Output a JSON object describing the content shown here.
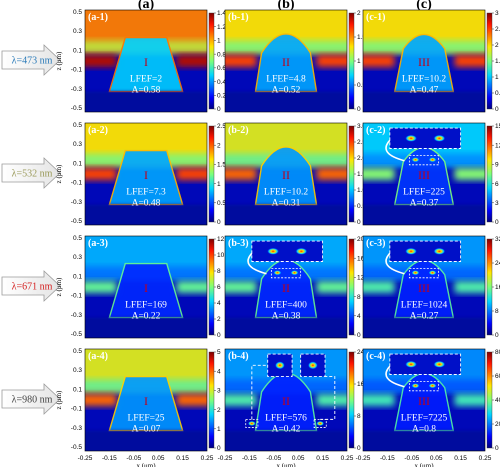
{
  "columns": [
    "(a)",
    "(b)",
    "(c)"
  ],
  "wavelengths": [
    {
      "label": "λ=473 nm",
      "color": "#2b7bb9"
    },
    {
      "label": "λ=532 nm",
      "color": "#9a9a5a"
    },
    {
      "label": "λ=671 nm",
      "color": "#d42020"
    },
    {
      "label": "λ=980 nm",
      "color": "#444444"
    }
  ],
  "axes": {
    "x_label": "x (μm)",
    "z_label": "z (μm)",
    "x_ticks": [
      "-0.25",
      "-0.15",
      "-0.05",
      "0.05",
      "0.15",
      "0.25"
    ],
    "z_ticks": [
      "0.5",
      "0.3",
      "0.1",
      "-0.1",
      "-0.3",
      "-0.5"
    ]
  },
  "panels": [
    {
      "id": "(a-1)",
      "region": "I",
      "lfef": "LFEF=2",
      "abs": "A=0.58",
      "cbar": [
        "1.4",
        "1.2",
        "1",
        "0.8",
        "0.6",
        "0.4",
        "0.2",
        "0"
      ],
      "type": "a",
      "level": 0.75,
      "zoom": 0
    },
    {
      "id": "(b-1)",
      "region": "II",
      "lfef": "LFEF=4.8",
      "abs": "A=0.52",
      "cbar": [
        "2",
        "1.5",
        "1",
        "0.5",
        "0"
      ],
      "type": "b",
      "level": 0.6,
      "zoom": 0
    },
    {
      "id": "(c-1)",
      "region": "III",
      "lfef": "LFEF=10.2",
      "abs": "A=0.47",
      "cbar": [
        "3",
        "2.5",
        "2",
        "1.5",
        "1",
        "0.5",
        "0"
      ],
      "type": "c",
      "level": 0.6,
      "zoom": 0
    },
    {
      "id": "(a-2)",
      "region": "I",
      "lfef": "LFEF=7.3",
      "abs": "A=0.48",
      "cbar": [
        "2.5",
        "2",
        "1.5",
        "1",
        "0.5",
        "0"
      ],
      "type": "a",
      "level": 0.6,
      "zoom": 0
    },
    {
      "id": "(b-2)",
      "region": "II",
      "lfef": "LFEF=10.2",
      "abs": "A=0.31",
      "cbar": [
        "3.0",
        "2.5",
        "2.0",
        "1.5",
        "1.0",
        "0.5",
        "0"
      ],
      "type": "b",
      "level": 0.55,
      "zoom": 0
    },
    {
      "id": "(c-2)",
      "region": "III",
      "lfef": "LFEF=225",
      "abs": "A=0.37",
      "cbar": [
        "15",
        "12",
        "9",
        "6",
        "3",
        "0"
      ],
      "type": "c",
      "level": 0.2,
      "zoom": 1
    },
    {
      "id": "(a-3)",
      "region": "I",
      "lfef": "LFEF=169",
      "abs": "A=0.22",
      "cbar": [
        "12",
        "10",
        "8",
        "6",
        "4",
        "2",
        "0"
      ],
      "type": "a",
      "level": 0.15,
      "zoom": 0
    },
    {
      "id": "(b-3)",
      "region": "II",
      "lfef": "LFEF=400",
      "abs": "A=0.38",
      "cbar": [
        "20",
        "16",
        "12",
        "8",
        "4",
        "0"
      ],
      "type": "b",
      "level": 0.15,
      "zoom": 1
    },
    {
      "id": "(c-3)",
      "region": "III",
      "lfef": "LFEF=1024",
      "abs": "A=0.27",
      "cbar": [
        "32",
        "24",
        "16",
        "8",
        "0"
      ],
      "type": "c",
      "level": 0.12,
      "zoom": 1
    },
    {
      "id": "(a-4)",
      "region": "I",
      "lfef": "LFEF=25",
      "abs": "A=0.07",
      "cbar": [
        "5",
        "4",
        "3",
        "2",
        "1",
        "0"
      ],
      "type": "a",
      "level": 0.55,
      "zoom": 0
    },
    {
      "id": "(b-4)",
      "region": "II",
      "lfef": "LFEF=576",
      "abs": "A=0.42",
      "cbar": [
        "24",
        "16",
        "8",
        "0"
      ],
      "type": "b",
      "level": 0.12,
      "zoom": 2
    },
    {
      "id": "(c-4)",
      "region": "III",
      "lfef": "LFEF=7225",
      "abs": "A=0.8",
      "cbar": [
        "80",
        "60",
        "40",
        "20",
        "0"
      ],
      "type": "c",
      "level": 0.1,
      "zoom": 1
    }
  ]
}
